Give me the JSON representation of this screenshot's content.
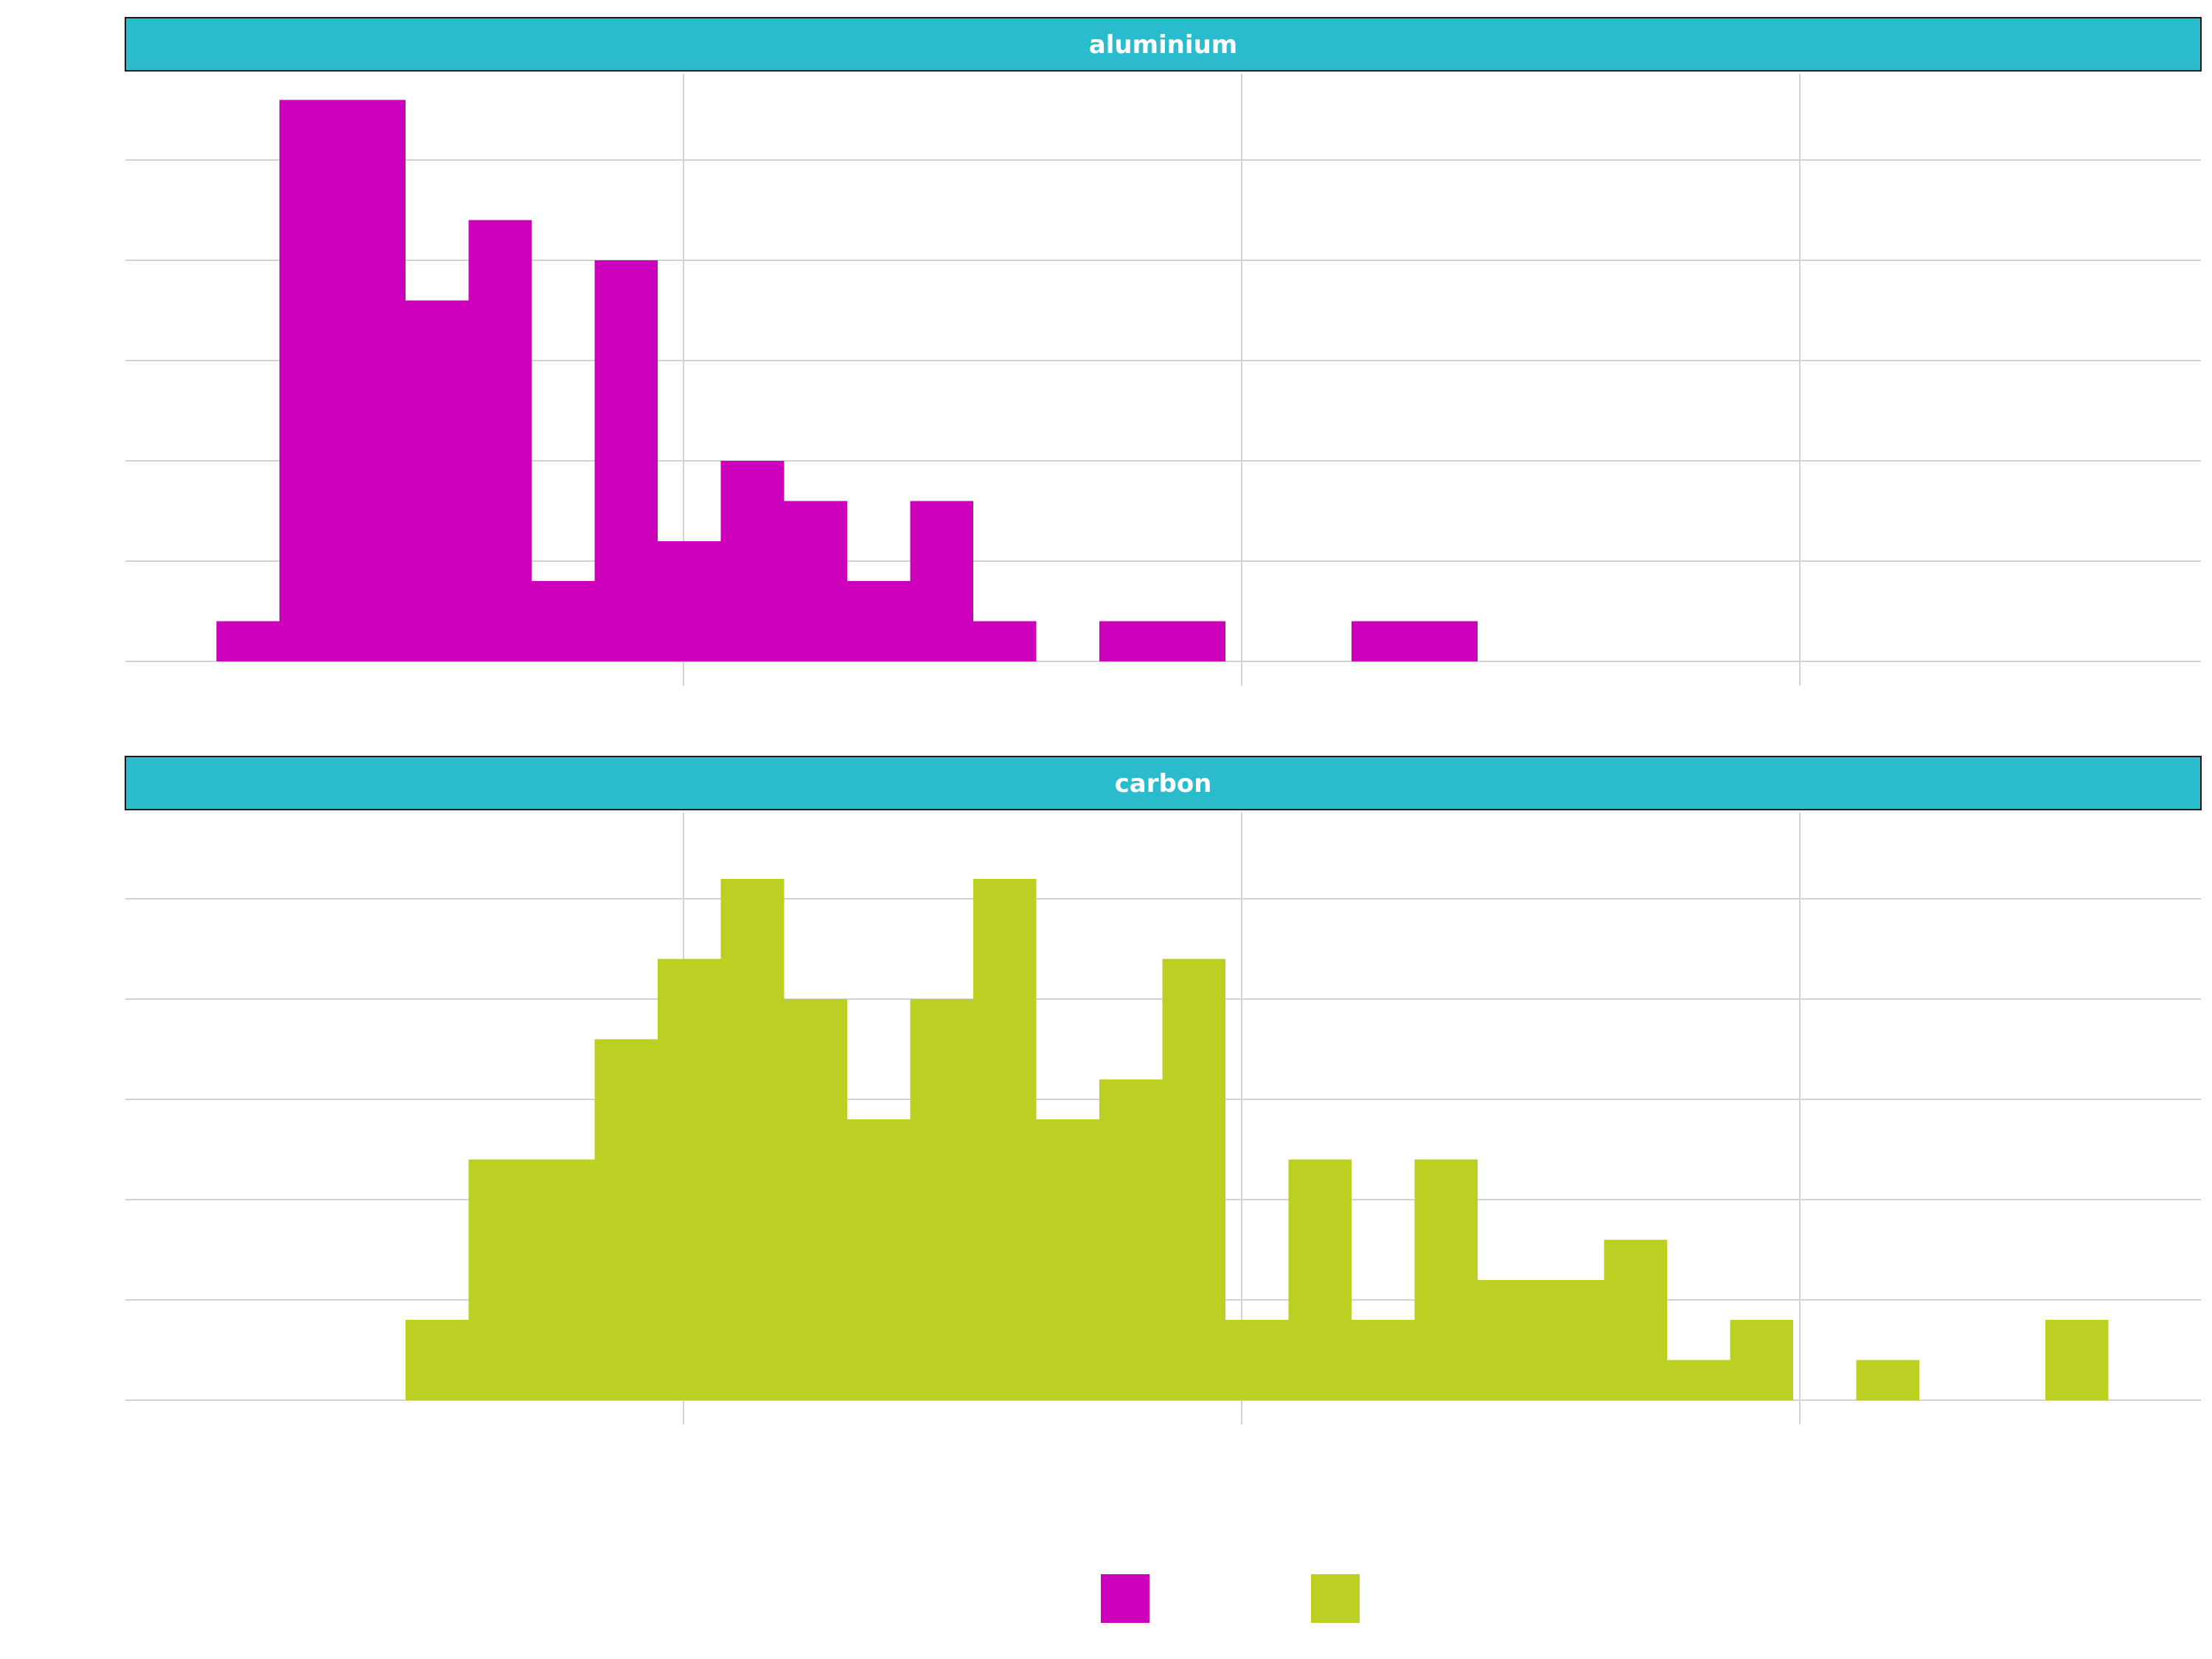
{
  "chart_data": {
    "type": "bar",
    "layout": "faceted-histogram",
    "facets": [
      "aluminium",
      "carbon"
    ],
    "xlim": [
      0,
      1.86
    ],
    "x_gridlines": [
      0.5,
      1.0,
      1.5
    ],
    "ylim": [
      0,
      15
    ],
    "y_gridlines": [
      0,
      2.5,
      5,
      7.5,
      10,
      12.5
    ],
    "bin_width": 0.0565,
    "legend_position": "bottom",
    "series": [
      {
        "facet": "aluminium",
        "color": "#CC00BB",
        "bins": [
          {
            "x0": 0.0815,
            "x1": 0.138,
            "count": 1
          },
          {
            "x0": 0.138,
            "x1": 0.251,
            "count": 14
          },
          {
            "x0": 0.251,
            "x1": 0.3075,
            "count": 9
          },
          {
            "x0": 0.3075,
            "x1": 0.364,
            "count": 11
          },
          {
            "x0": 0.364,
            "x1": 0.4205,
            "count": 2
          },
          {
            "x0": 0.4205,
            "x1": 0.477,
            "count": 10
          },
          {
            "x0": 0.477,
            "x1": 0.5335,
            "count": 3
          },
          {
            "x0": 0.5335,
            "x1": 0.59,
            "count": 5
          },
          {
            "x0": 0.59,
            "x1": 0.6465,
            "count": 4
          },
          {
            "x0": 0.6465,
            "x1": 0.703,
            "count": 2
          },
          {
            "x0": 0.703,
            "x1": 0.7595,
            "count": 4
          },
          {
            "x0": 0.7595,
            "x1": 0.816,
            "count": 1
          },
          {
            "x0": 0.8725,
            "x1": 0.9855,
            "count": 1
          },
          {
            "x0": 1.0985,
            "x1": 1.2115,
            "count": 1
          }
        ]
      },
      {
        "facet": "carbon",
        "color": "#BBD022",
        "bins": [
          {
            "x0": 0.251,
            "x1": 0.3075,
            "count": 2
          },
          {
            "x0": 0.3075,
            "x1": 0.4205,
            "count": 6
          },
          {
            "x0": 0.4205,
            "x1": 0.477,
            "count": 9
          },
          {
            "x0": 0.477,
            "x1": 0.5335,
            "count": 11
          },
          {
            "x0": 0.5335,
            "x1": 0.59,
            "count": 13
          },
          {
            "x0": 0.59,
            "x1": 0.6465,
            "count": 10
          },
          {
            "x0": 0.6465,
            "x1": 0.703,
            "count": 7
          },
          {
            "x0": 0.703,
            "x1": 0.7595,
            "count": 10
          },
          {
            "x0": 0.7595,
            "x1": 0.816,
            "count": 13
          },
          {
            "x0": 0.816,
            "x1": 0.8725,
            "count": 7
          },
          {
            "x0": 0.8725,
            "x1": 0.929,
            "count": 8
          },
          {
            "x0": 0.929,
            "x1": 0.9855,
            "count": 11
          },
          {
            "x0": 0.9855,
            "x1": 1.042,
            "count": 2
          },
          {
            "x0": 1.042,
            "x1": 1.0985,
            "count": 6
          },
          {
            "x0": 1.0985,
            "x1": 1.155,
            "count": 2
          },
          {
            "x0": 1.155,
            "x1": 1.2115,
            "count": 6
          },
          {
            "x0": 1.2115,
            "x1": 1.3245,
            "count": 3
          },
          {
            "x0": 1.3245,
            "x1": 1.381,
            "count": 4
          },
          {
            "x0": 1.381,
            "x1": 1.4375,
            "count": 1
          },
          {
            "x0": 1.4375,
            "x1": 1.494,
            "count": 2
          },
          {
            "x0": 1.5505,
            "x1": 1.607,
            "count": 1
          },
          {
            "x0": 1.72,
            "x1": 1.7765,
            "count": 2
          }
        ]
      }
    ],
    "legend": [
      {
        "color": "#CC00BB"
      },
      {
        "color": "#BBD022"
      }
    ]
  },
  "colors": {
    "strip_fill": "#2ABBCC",
    "strip_border": "#1a1a1a",
    "grid": "#d2d2d2"
  }
}
